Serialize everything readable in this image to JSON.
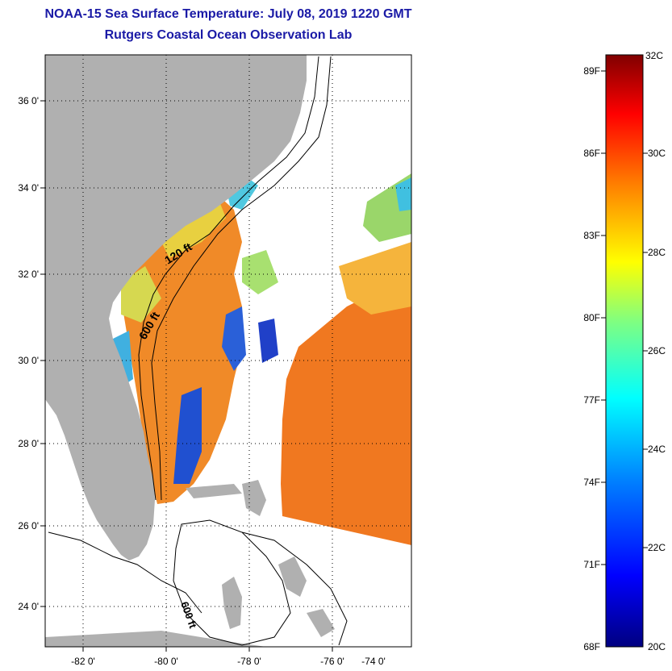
{
  "header": {
    "title": "NOAA-15 Sea Surface Temperature:  July 08, 2019 1220 GMT",
    "subtitle": "Rutgers Coastal Ocean Observation Lab"
  },
  "map": {
    "lat_labels": [
      "36 0'",
      "34 0'",
      "32 0'",
      "30 0'",
      "28 0'",
      "26 0'",
      "24 0'"
    ],
    "lon_labels": [
      "-82 0'",
      "-80 0'",
      "-78 0'",
      "-76 0'",
      "-74 0'"
    ],
    "contour_labels": [
      "120 ft",
      "600 ft",
      "600 ft"
    ]
  },
  "colorbar": {
    "f_labels": [
      "89F",
      "86F",
      "83F",
      "80F",
      "77F",
      "74F",
      "71F",
      "68F"
    ],
    "c_labels": [
      "32C",
      "30C",
      "28C",
      "26C",
      "24C",
      "22C",
      "20C"
    ],
    "colors": [
      "#000080",
      "#0000ff",
      "#0080ff",
      "#00ffff",
      "#80ff80",
      "#ffff00",
      "#ff8000",
      "#ff0000",
      "#800000"
    ]
  }
}
